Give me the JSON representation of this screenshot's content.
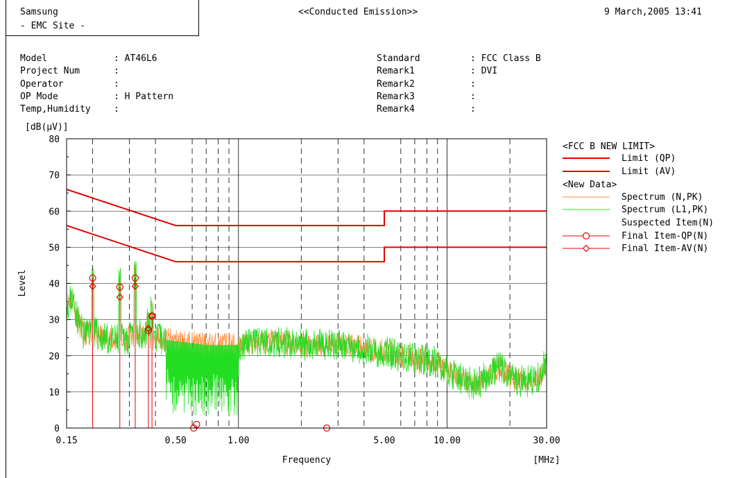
{
  "header": {
    "company": "Samsung",
    "site": "- EMC Site -",
    "report_title": "<<Conducted Emission>>",
    "timestamp": "9 March,2005 13:41"
  },
  "info_left": [
    {
      "label": "Model",
      "value": ": AT46L6"
    },
    {
      "label": "Project Num",
      "value": ":"
    },
    {
      "label": "Operator",
      "value": ":"
    },
    {
      "label": "OP Mode",
      "value": ": H Pattern"
    },
    {
      "label": "Temp,Humidity",
      "value": ":"
    }
  ],
  "info_right": [
    {
      "label": "Standard",
      "value": ": FCC Class B"
    },
    {
      "label": "Remark1",
      "value": ": DVI"
    },
    {
      "label": "Remark2",
      "value": ":"
    },
    {
      "label": "Remark3",
      "value": ":"
    },
    {
      "label": "Remark4",
      "value": ":"
    }
  ],
  "colors": {
    "limit": "#e60000",
    "spectrum_n": "#ff8c3c",
    "spectrum_l1": "#22dd22",
    "final": "#e60000",
    "grid": "#000000"
  },
  "chart_data": {
    "type": "line",
    "x_scale": "log",
    "xlim": [
      0.15,
      30
    ],
    "ylim": [
      0,
      80
    ],
    "ylabel": "Level",
    "yunit": "[dB(μV)]",
    "xlabel": "Frequency",
    "xunit": "[MHz]",
    "x_tick_labels": [
      "0.15",
      "0.50",
      "1.00",
      "5.00",
      "10.00",
      "30.00"
    ],
    "x_ticks": [
      0.15,
      0.5,
      1,
      5,
      10,
      30
    ],
    "y_ticks": [
      0,
      10,
      20,
      30,
      40,
      50,
      60,
      70,
      80
    ],
    "grid": true,
    "legend": {
      "group1_title": "<FCC B NEW LIMIT>",
      "group2_title": "<New Data>",
      "entries": [
        {
          "label": "Limit (QP)",
          "style": "limit"
        },
        {
          "label": "Limit (AV)",
          "style": "limit"
        },
        {
          "label": "Spectrum (N,PK)",
          "style": "spectrum_n"
        },
        {
          "label": "Spectrum (L1,PK)",
          "style": "spectrum_l1"
        },
        {
          "label": "Suspected Item(N)",
          "style": "none"
        },
        {
          "label": "Final Item-QP(N)",
          "style": "circle"
        },
        {
          "label": "Final Item-AV(N)",
          "style": "diamond"
        }
      ]
    },
    "limit_qp": [
      [
        0.15,
        66
      ],
      [
        0.5,
        56
      ],
      [
        5,
        56
      ],
      [
        5,
        60
      ],
      [
        30,
        60
      ]
    ],
    "limit_av": [
      [
        0.15,
        56
      ],
      [
        0.5,
        46
      ],
      [
        5,
        46
      ],
      [
        5,
        50
      ],
      [
        30,
        50
      ]
    ],
    "spectrum_envelope": [
      [
        0.15,
        34
      ],
      [
        0.16,
        36
      ],
      [
        0.17,
        30
      ],
      [
        0.18,
        26
      ],
      [
        0.2,
        27
      ],
      [
        0.22,
        25
      ],
      [
        0.25,
        24
      ],
      [
        0.3,
        25
      ],
      [
        0.35,
        26
      ],
      [
        0.4,
        25
      ],
      [
        0.5,
        24
      ],
      [
        0.7,
        23
      ],
      [
        1.0,
        23
      ],
      [
        1.5,
        24
      ],
      [
        2.0,
        23
      ],
      [
        3.0,
        23
      ],
      [
        4.0,
        22
      ],
      [
        5.0,
        21
      ],
      [
        6.0,
        20
      ],
      [
        7.0,
        19
      ],
      [
        8.0,
        19
      ],
      [
        9.0,
        18
      ],
      [
        10.0,
        16
      ],
      [
        12.0,
        13
      ],
      [
        14.0,
        12
      ],
      [
        16.0,
        15
      ],
      [
        18.0,
        17
      ],
      [
        20.0,
        14
      ],
      [
        22.0,
        13
      ],
      [
        25.0,
        13
      ],
      [
        28.0,
        14
      ],
      [
        30.0,
        19
      ]
    ],
    "peaks": [
      {
        "x": 0.2,
        "y": 42
      },
      {
        "x": 0.27,
        "y": 40
      },
      {
        "x": 0.32,
        "y": 42
      },
      {
        "x": 0.37,
        "y": 29
      },
      {
        "x": 0.385,
        "y": 32
      }
    ],
    "final_qp": [
      {
        "x": 0.2,
        "y": 41.5
      },
      {
        "x": 0.27,
        "y": 39
      },
      {
        "x": 0.32,
        "y": 41.5
      },
      {
        "x": 0.37,
        "y": 27
      },
      {
        "x": 0.385,
        "y": 31
      },
      {
        "x": 0.61,
        "y": 0
      },
      {
        "x": 0.63,
        "y": 1
      },
      {
        "x": 2.65,
        "y": 0
      }
    ],
    "final_av": [
      {
        "x": 0.2,
        "y": 39.2
      },
      {
        "x": 0.27,
        "y": 36.2
      },
      {
        "x": 0.32,
        "y": 39.2
      },
      {
        "x": 0.37,
        "y": 27.5
      },
      {
        "x": 0.385,
        "y": 31
      }
    ]
  }
}
